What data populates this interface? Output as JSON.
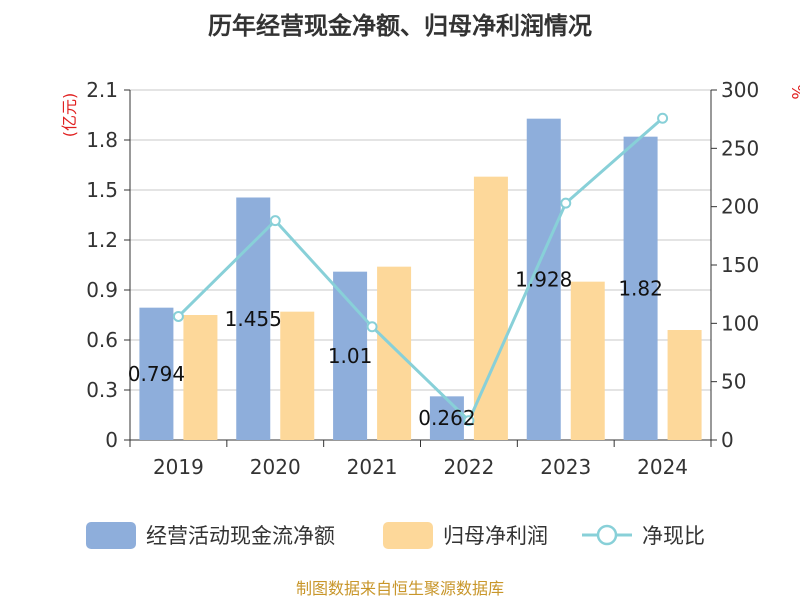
{
  "chart_data": {
    "type": "bar",
    "title": "历年经营现金净额、归母净利润情况",
    "categories": [
      "2019",
      "2020",
      "2021",
      "2022",
      "2023",
      "2024"
    ],
    "left_axis": {
      "unit": "(亿元)",
      "ylim": [
        0,
        2.1
      ],
      "ticks": [
        "0",
        "0.3",
        "0.6",
        "0.9",
        "1.2",
        "1.5",
        "1.8",
        "2.1"
      ]
    },
    "right_axis": {
      "unit": "%",
      "ylim": [
        0,
        300
      ],
      "ticks": [
        "0",
        "50",
        "100",
        "150",
        "200",
        "250",
        "300"
      ]
    },
    "series": [
      {
        "name": "经营活动现金流净额",
        "type": "bar",
        "axis": "left",
        "color": "#8eaedb",
        "values": [
          0.794,
          1.455,
          1.01,
          0.262,
          1.928,
          1.82
        ],
        "labels": [
          "0.794",
          "1.455",
          "1.01",
          "0.262",
          "1.928",
          "1.82"
        ]
      },
      {
        "name": "归母净利润",
        "type": "bar",
        "axis": "left",
        "color": "#fdd89a",
        "values": [
          0.75,
          0.77,
          1.04,
          1.58,
          0.95,
          0.66
        ]
      },
      {
        "name": "净现比",
        "type": "line",
        "axis": "right",
        "color": "#88d0d8",
        "values": [
          105.9,
          188.0,
          97.1,
          16.6,
          203.0,
          275.8
        ]
      }
    ],
    "grid": true,
    "legend": "bottom"
  },
  "footer": {
    "source": "制图数据来自恒生聚源数据库"
  }
}
